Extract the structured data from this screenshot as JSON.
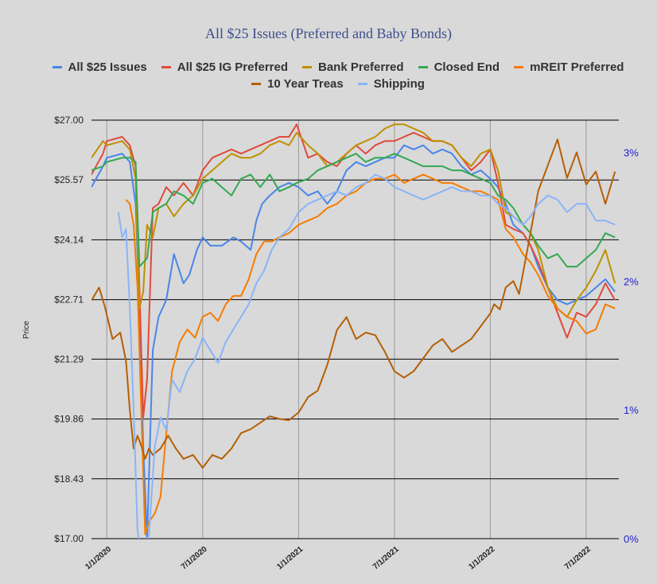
{
  "chart_data": {
    "type": "line",
    "title": "All $25 Issues (Preferred and Baby Bonds)",
    "ylabel": "Price",
    "ylim": [
      17.0,
      27.0
    ],
    "y_ticks": [
      "$27.00",
      "$25.57",
      "$24.14",
      "$22.71",
      "$21.29",
      "$19.86",
      "$18.43",
      "$17.00"
    ],
    "y_tick_values": [
      27.0,
      25.57,
      24.14,
      22.71,
      21.29,
      19.86,
      18.43,
      17.0
    ],
    "y2lim": [
      0,
      3.25
    ],
    "y2_ticks": [
      "3%",
      "2%",
      "1%",
      "0%"
    ],
    "y2_tick_values": [
      3,
      2,
      1,
      0
    ],
    "x_ticks": [
      "1/1/2020",
      "7/1/2020",
      "1/1/2021",
      "7/1/2021",
      "1/1/2022",
      "7/1/2022"
    ],
    "x_tick_values": [
      2020.0,
      2020.5,
      2021.0,
      2021.5,
      2022.0,
      2022.5
    ],
    "xlim": [
      2019.92,
      2022.67
    ],
    "grid": "horizontal",
    "legend_position": "top",
    "series": [
      {
        "name": "All $25 Issues",
        "color": "#4a86e8",
        "axis": "left",
        "x": [
          2019.92,
          2019.98,
          2020.0,
          2020.08,
          2020.12,
          2020.15,
          2020.17,
          2020.19,
          2020.21,
          2020.24,
          2020.27,
          2020.31,
          2020.35,
          2020.4,
          2020.43,
          2020.47,
          2020.5,
          2020.54,
          2020.6,
          2020.66,
          2020.7,
          2020.75,
          2020.78,
          2020.81,
          2020.85,
          2020.9,
          2020.95,
          2021.0,
          2021.05,
          2021.1,
          2021.15,
          2021.2,
          2021.25,
          2021.3,
          2021.35,
          2021.4,
          2021.45,
          2021.5,
          2021.55,
          2021.6,
          2021.65,
          2021.7,
          2021.75,
          2021.8,
          2021.85,
          2021.9,
          2021.95,
          2022.0,
          2022.04,
          2022.08,
          2022.12,
          2022.17,
          2022.21,
          2022.25,
          2022.3,
          2022.35,
          2022.4,
          2022.45,
          2022.5,
          2022.55,
          2022.6,
          2022.65
        ],
        "values": [
          25.4,
          25.9,
          26.1,
          26.2,
          26.0,
          25.0,
          22.5,
          19.2,
          17.0,
          21.5,
          22.3,
          22.7,
          23.8,
          23.1,
          23.3,
          23.9,
          24.2,
          24.0,
          24.0,
          24.2,
          24.1,
          23.9,
          24.6,
          25.0,
          25.2,
          25.4,
          25.5,
          25.4,
          25.2,
          25.3,
          25.0,
          25.3,
          25.8,
          26.0,
          25.9,
          26.0,
          26.1,
          26.1,
          26.4,
          26.3,
          26.4,
          26.2,
          26.3,
          26.2,
          25.9,
          25.7,
          25.8,
          25.6,
          25.4,
          25.0,
          24.5,
          24.3,
          24.0,
          23.5,
          23.0,
          22.7,
          22.6,
          22.7,
          22.8,
          23.0,
          23.2,
          22.9
        ]
      },
      {
        "name": "All $25 IG Preferred",
        "color": "#e04a3c",
        "axis": "left",
        "x": [
          2019.92,
          2019.98,
          2020.0,
          2020.08,
          2020.12,
          2020.15,
          2020.17,
          2020.19,
          2020.21,
          2020.24,
          2020.27,
          2020.31,
          2020.35,
          2020.4,
          2020.45,
          2020.5,
          2020.55,
          2020.6,
          2020.65,
          2020.7,
          2020.75,
          2020.8,
          2020.85,
          2020.9,
          2020.95,
          2020.99,
          2021.05,
          2021.1,
          2021.15,
          2021.2,
          2021.25,
          2021.3,
          2021.35,
          2021.4,
          2021.45,
          2021.5,
          2021.55,
          2021.6,
          2021.65,
          2021.7,
          2021.75,
          2021.8,
          2021.85,
          2021.9,
          2021.95,
          2022.0,
          2022.04,
          2022.08,
          2022.12,
          2022.17,
          2022.21,
          2022.25,
          2022.3,
          2022.35,
          2022.4,
          2022.45,
          2022.5,
          2022.55,
          2022.6,
          2022.65
        ],
        "values": [
          25.7,
          26.2,
          26.5,
          26.6,
          26.4,
          25.9,
          23.0,
          19.9,
          20.8,
          24.9,
          25.0,
          25.4,
          25.2,
          25.5,
          25.2,
          25.8,
          26.1,
          26.2,
          26.3,
          26.2,
          26.3,
          26.4,
          26.5,
          26.6,
          26.6,
          26.9,
          26.1,
          26.2,
          26.0,
          25.9,
          26.2,
          26.4,
          26.2,
          26.4,
          26.5,
          26.5,
          26.6,
          26.7,
          26.6,
          26.5,
          26.5,
          26.4,
          26.1,
          25.8,
          26.0,
          26.3,
          25.5,
          24.5,
          24.4,
          24.3,
          24.0,
          23.6,
          23.0,
          22.4,
          21.8,
          22.4,
          22.3,
          22.6,
          23.1,
          22.7
        ]
      },
      {
        "name": "Bank Preferred",
        "color": "#bf9000",
        "axis": "left",
        "x": [
          2019.92,
          2019.98,
          2020.0,
          2020.08,
          2020.12,
          2020.15,
          2020.17,
          2020.19,
          2020.21,
          2020.24,
          2020.27,
          2020.31,
          2020.35,
          2020.4,
          2020.45,
          2020.5,
          2020.55,
          2020.6,
          2020.65,
          2020.7,
          2020.75,
          2020.8,
          2020.85,
          2020.9,
          2020.95,
          2020.99,
          2021.05,
          2021.1,
          2021.15,
          2021.2,
          2021.25,
          2021.3,
          2021.35,
          2021.4,
          2021.45,
          2021.5,
          2021.55,
          2021.6,
          2021.65,
          2021.7,
          2021.75,
          2021.8,
          2021.85,
          2021.9,
          2021.95,
          2022.0,
          2022.04,
          2022.08,
          2022.12,
          2022.17,
          2022.21,
          2022.25,
          2022.3,
          2022.35,
          2022.4,
          2022.45,
          2022.5,
          2022.55,
          2022.6,
          2022.65
        ],
        "values": [
          26.1,
          26.5,
          26.4,
          26.5,
          26.3,
          25.6,
          22.5,
          22.9,
          24.5,
          24.2,
          24.9,
          25.0,
          24.7,
          25.0,
          25.2,
          25.6,
          25.8,
          26.0,
          26.2,
          26.1,
          26.1,
          26.2,
          26.4,
          26.5,
          26.4,
          26.7,
          26.4,
          26.2,
          25.9,
          26.0,
          26.2,
          26.4,
          26.5,
          26.6,
          26.8,
          26.9,
          26.9,
          26.8,
          26.7,
          26.5,
          26.5,
          26.4,
          26.1,
          25.9,
          26.2,
          26.3,
          25.8,
          24.8,
          24.7,
          24.5,
          24.3,
          23.9,
          23.0,
          22.5,
          22.3,
          22.7,
          23.0,
          23.4,
          23.9,
          23.1
        ]
      },
      {
        "name": "Closed End",
        "color": "#34a853",
        "axis": "left",
        "x": [
          2019.92,
          2019.98,
          2020.0,
          2020.08,
          2020.12,
          2020.15,
          2020.17,
          2020.19,
          2020.21,
          2020.24,
          2020.27,
          2020.31,
          2020.35,
          2020.4,
          2020.45,
          2020.5,
          2020.55,
          2020.6,
          2020.65,
          2020.7,
          2020.75,
          2020.8,
          2020.85,
          2020.9,
          2020.95,
          2020.99,
          2021.05,
          2021.1,
          2021.15,
          2021.2,
          2021.25,
          2021.3,
          2021.35,
          2021.4,
          2021.45,
          2021.5,
          2021.55,
          2021.6,
          2021.65,
          2021.7,
          2021.75,
          2021.8,
          2021.85,
          2021.9,
          2021.95,
          2022.0,
          2022.04,
          2022.08,
          2022.12,
          2022.17,
          2022.21,
          2022.25,
          2022.3,
          2022.35,
          2022.4,
          2022.45,
          2022.5,
          2022.55,
          2022.6,
          2022.65
        ],
        "values": [
          25.8,
          25.9,
          26.0,
          26.1,
          26.1,
          26.0,
          23.5,
          23.6,
          23.7,
          24.8,
          24.9,
          25.0,
          25.3,
          25.2,
          25.0,
          25.5,
          25.6,
          25.4,
          25.2,
          25.6,
          25.7,
          25.4,
          25.7,
          25.3,
          25.4,
          25.5,
          25.6,
          25.8,
          25.9,
          26.0,
          26.1,
          26.2,
          26.0,
          26.1,
          26.1,
          26.2,
          26.1,
          26.0,
          25.9,
          25.9,
          25.9,
          25.8,
          25.8,
          25.7,
          25.6,
          25.5,
          25.2,
          25.1,
          24.9,
          24.5,
          24.3,
          24.0,
          23.7,
          23.8,
          23.5,
          23.5,
          23.7,
          23.9,
          24.3,
          24.2
        ]
      },
      {
        "name": "mREIT Preferred",
        "color": "#f57c00",
        "axis": "left",
        "x": [
          2020.1,
          2020.12,
          2020.14,
          2020.16,
          2020.18,
          2020.2,
          2020.22,
          2020.25,
          2020.28,
          2020.31,
          2020.34,
          2020.38,
          2020.42,
          2020.46,
          2020.5,
          2020.54,
          2020.58,
          2020.62,
          2020.66,
          2020.7,
          2020.74,
          2020.78,
          2020.82,
          2020.86,
          2020.9,
          2020.95,
          2021.0,
          2021.05,
          2021.1,
          2021.15,
          2021.2,
          2021.25,
          2021.3,
          2021.35,
          2021.4,
          2021.45,
          2021.5,
          2021.55,
          2021.6,
          2021.65,
          2021.7,
          2021.75,
          2021.8,
          2021.85,
          2021.9,
          2021.95,
          2022.0,
          2022.04,
          2022.08,
          2022.12,
          2022.17,
          2022.21,
          2022.25,
          2022.3,
          2022.35,
          2022.4,
          2022.45,
          2022.5,
          2022.55,
          2022.6,
          2022.65
        ],
        "values": [
          25.1,
          25.0,
          24.5,
          23.0,
          20.0,
          17.1,
          17.4,
          17.6,
          18.0,
          19.5,
          21.0,
          21.7,
          22.0,
          21.8,
          22.3,
          22.4,
          22.2,
          22.6,
          22.8,
          22.8,
          23.2,
          23.8,
          24.1,
          24.1,
          24.2,
          24.3,
          24.5,
          24.6,
          24.7,
          24.9,
          25.0,
          25.2,
          25.3,
          25.5,
          25.6,
          25.6,
          25.7,
          25.5,
          25.6,
          25.7,
          25.6,
          25.5,
          25.5,
          25.4,
          25.3,
          25.3,
          25.2,
          25.1,
          24.4,
          24.2,
          23.8,
          23.6,
          23.3,
          22.8,
          22.5,
          22.3,
          22.2,
          21.9,
          22.0,
          22.6,
          22.5
        ]
      },
      {
        "name": "10 Year Treas",
        "color": "#b45f06",
        "axis": "right",
        "x": [
          2019.92,
          2019.96,
          2019.99,
          2020.03,
          2020.07,
          2020.1,
          2020.12,
          2020.14,
          2020.16,
          2020.18,
          2020.2,
          2020.22,
          2020.24,
          2020.28,
          2020.32,
          2020.36,
          2020.4,
          2020.45,
          2020.5,
          2020.55,
          2020.6,
          2020.65,
          2020.7,
          2020.75,
          2020.8,
          2020.85,
          2020.9,
          2020.95,
          2021.0,
          2021.05,
          2021.1,
          2021.15,
          2021.2,
          2021.25,
          2021.3,
          2021.35,
          2021.4,
          2021.45,
          2021.5,
          2021.55,
          2021.6,
          2021.65,
          2021.7,
          2021.75,
          2021.8,
          2021.85,
          2021.9,
          2021.95,
          2022.0,
          2022.02,
          2022.05,
          2022.08,
          2022.12,
          2022.15,
          2022.2,
          2022.25,
          2022.3,
          2022.35,
          2022.4,
          2022.45,
          2022.5,
          2022.55,
          2022.6,
          2022.65
        ],
        "values": [
          1.85,
          1.95,
          1.8,
          1.55,
          1.6,
          1.38,
          1.0,
          0.7,
          0.8,
          0.72,
          0.62,
          0.7,
          0.65,
          0.7,
          0.8,
          0.7,
          0.62,
          0.65,
          0.55,
          0.65,
          0.62,
          0.7,
          0.82,
          0.85,
          0.9,
          0.95,
          0.93,
          0.92,
          0.98,
          1.1,
          1.15,
          1.35,
          1.62,
          1.72,
          1.55,
          1.6,
          1.58,
          1.45,
          1.3,
          1.25,
          1.3,
          1.4,
          1.5,
          1.55,
          1.45,
          1.5,
          1.55,
          1.65,
          1.75,
          1.82,
          1.78,
          1.95,
          2.0,
          1.9,
          2.3,
          2.7,
          2.9,
          3.1,
          2.8,
          3.0,
          2.75,
          2.85,
          2.6,
          2.85
        ]
      },
      {
        "name": "Shipping",
        "color": "#8ab4f8",
        "axis": "left",
        "x": [
          2020.06,
          2020.08,
          2020.1,
          2020.12,
          2020.14,
          2020.16,
          2020.18,
          2020.2,
          2020.22,
          2020.25,
          2020.28,
          2020.31,
          2020.34,
          2020.38,
          2020.42,
          2020.46,
          2020.5,
          2020.54,
          2020.58,
          2020.62,
          2020.66,
          2020.7,
          2020.74,
          2020.78,
          2020.82,
          2020.86,
          2020.9,
          2020.95,
          2021.0,
          2021.05,
          2021.1,
          2021.15,
          2021.2,
          2021.25,
          2021.3,
          2021.35,
          2021.4,
          2021.45,
          2021.5,
          2021.55,
          2021.6,
          2021.65,
          2021.7,
          2021.75,
          2021.8,
          2021.85,
          2021.9,
          2021.95,
          2022.0,
          2022.04,
          2022.08,
          2022.12,
          2022.17,
          2022.21,
          2022.25,
          2022.3,
          2022.35,
          2022.4,
          2022.45,
          2022.5,
          2022.55,
          2022.6,
          2022.65
        ],
        "values": [
          24.8,
          24.2,
          24.4,
          22.5,
          20.1,
          17.2,
          16.5,
          16.8,
          17.1,
          19.2,
          19.9,
          19.6,
          20.8,
          20.5,
          21.0,
          21.3,
          21.8,
          21.5,
          21.2,
          21.7,
          22.0,
          22.3,
          22.6,
          23.1,
          23.4,
          23.9,
          24.2,
          24.4,
          24.8,
          25.0,
          25.1,
          25.2,
          25.3,
          25.2,
          25.4,
          25.5,
          25.7,
          25.6,
          25.4,
          25.3,
          25.2,
          25.1,
          25.2,
          25.3,
          25.4,
          25.3,
          25.3,
          25.2,
          25.2,
          25.0,
          24.9,
          24.7,
          24.5,
          24.7,
          25.0,
          25.2,
          25.1,
          24.8,
          25.0,
          25.0,
          24.6,
          24.6,
          24.5
        ]
      }
    ]
  }
}
